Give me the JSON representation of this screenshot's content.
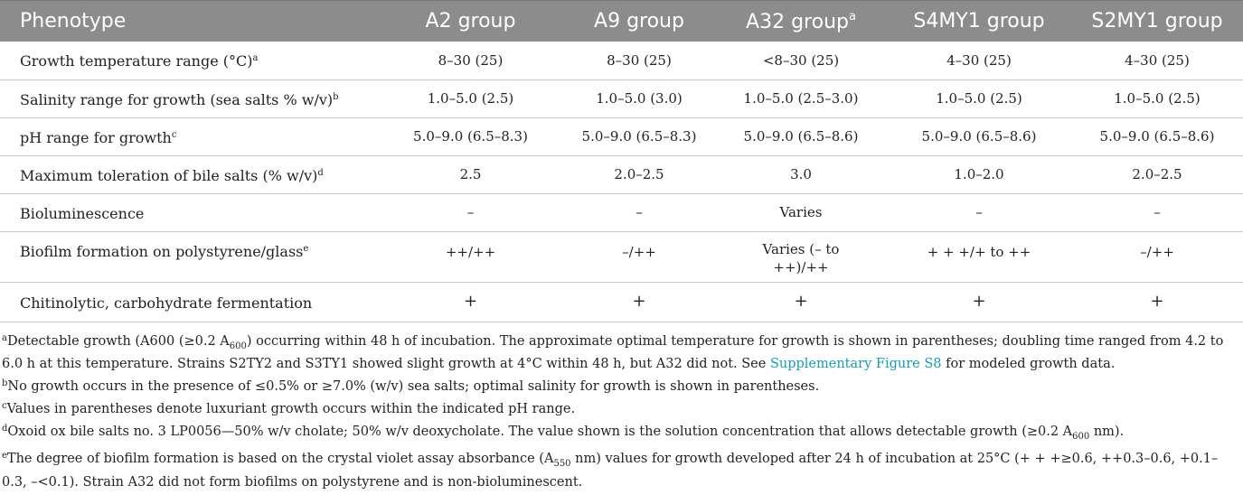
{
  "table": {
    "headers": [
      {
        "text": "Phenotype",
        "sup": ""
      },
      {
        "text": "A2 group",
        "sup": ""
      },
      {
        "text": "A9 group",
        "sup": ""
      },
      {
        "text": "A32 group",
        "sup": "a"
      },
      {
        "text": "S4MY1 group",
        "sup": ""
      },
      {
        "text": "S2MY1 group",
        "sup": ""
      }
    ],
    "rows": [
      {
        "label": "Growth temperature range (°C)",
        "sup": "a",
        "cells": [
          "8–30 (25)",
          "8–30 (25)",
          "<8–30 (25)",
          "4–30 (25)",
          "4–30 (25)"
        ]
      },
      {
        "label": "Salinity range for growth (sea salts % w/v)",
        "sup": "b",
        "cells": [
          "1.0–5.0 (2.5)",
          "1.0–5.0 (3.0)",
          "1.0–5.0 (2.5–3.0)",
          "1.0–5.0 (2.5)",
          "1.0–5.0 (2.5)"
        ]
      },
      {
        "label": "pH range for growth",
        "sup": "c",
        "cells": [
          "5.0–9.0 (6.5–8.3)",
          "5.0–9.0 (6.5–8.3)",
          "5.0–9.0 (6.5–8.6)",
          "5.0–9.0 (6.5–8.6)",
          "5.0–9.0 (6.5–8.6)"
        ]
      },
      {
        "label": "Maximum toleration of bile salts (% w/v)",
        "sup": "d",
        "cells": [
          "2.5",
          "2.0–2.5",
          "3.0",
          "1.0–2.0",
          "2.0–2.5"
        ]
      },
      {
        "label": "Bioluminescence",
        "sup": "",
        "cells": [
          "–",
          "–",
          "Varies",
          "–",
          "–"
        ]
      },
      {
        "label": "Biofilm formation on polystyrene/glass",
        "sup": "e",
        "cells": [
          "++/++",
          "–/++",
          "Varies (– to ++)/++",
          "+ + +/+ to ++",
          "–/++"
        ]
      },
      {
        "label": "Chitinolytic, carbohydrate fermentation",
        "sup": "",
        "cells": [
          "+",
          "+",
          "+",
          "+",
          "+"
        ]
      }
    ]
  },
  "footnotes": {
    "a": {
      "mark": "a",
      "t1": "Detectable growth (A600 (≥0.2 A",
      "sub1": "600",
      "t2": ") occurring within 48 h of incubation. The approximate optimal temperature for growth is shown in parentheses; doubling time ranged from 4.2 to 6.0 h at this temperature. Strains S2TY2 and S3TY1 showed slight growth at 4°C within 48 h, but A32 did not. See ",
      "link": "Supplementary Figure S8",
      "t3": " for modeled growth data."
    },
    "b": {
      "mark": "b",
      "text": "No growth occurs in the presence of ≤0.5% or ≥7.0% (w/v) sea salts; optimal salinity for growth is shown in parentheses."
    },
    "c": {
      "mark": "c",
      "text": "Values in parentheses denote luxuriant growth occurs within the indicated pH range."
    },
    "d": {
      "mark": "d",
      "t1": "Oxoid ox bile salts no. 3 LP0056—50% w/v cholate; 50% w/v deoxycholate. The value shown is the solution concentration that allows detectable growth (≥0.2 A",
      "sub1": "600",
      "t2": " nm)."
    },
    "e": {
      "mark": "e",
      "t1": "The degree of biofilm formation is based on the crystal violet assay absorbance (A",
      "sub1": "550",
      "t2": " nm) values for growth developed after 24 h of incubation at 25°C (+ + +≥0.6, ++0.3–0.6, +0.1–0.3, –<0.1). Strain A32 did not form biofilms on polystyrene and is non-bioluminescent."
    }
  }
}
